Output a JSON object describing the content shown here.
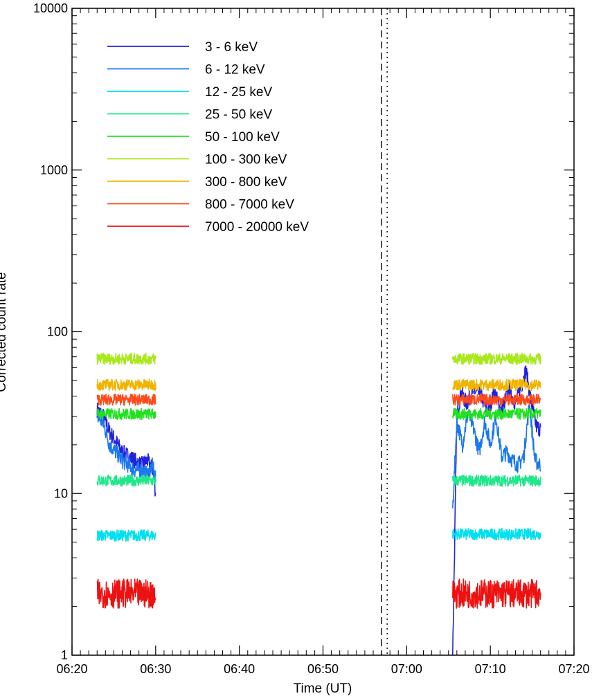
{
  "chart_data": {
    "type": "line",
    "title": "",
    "xlabel": "Time (UT)",
    "ylabel": "Corrected count rate",
    "y_scale": "log",
    "ylim": [
      1,
      10000
    ],
    "xlim": [
      "06:20",
      "07:20"
    ],
    "x_ticks": [
      "06:20",
      "06:30",
      "06:40",
      "06:50",
      "07:00",
      "07:10",
      "07:20"
    ],
    "y_ticks": [
      "1",
      "10",
      "100",
      "1000",
      "10000"
    ],
    "legend_position": "top-left",
    "grid": false,
    "vertical_lines": [
      {
        "time": "06:57",
        "style": "dashed"
      },
      {
        "time": "06:57:40",
        "style": "dotted"
      }
    ],
    "series": [
      {
        "name": "3 - 6 keV",
        "color": "#2222dd",
        "segments": [
          {
            "x": [
              "06:23:00",
              "06:23:45",
              "06:24:30",
              "06:25:15",
              "06:26:00",
              "06:26:45",
              "06:27:30",
              "06:28:15",
              "06:29:00",
              "06:29:40",
              "06:30:00"
            ],
            "y": [
              33,
              30,
              24,
              21,
              18,
              17,
              16,
              15,
              16,
              14,
              10
            ]
          },
          {
            "x": [
              "07:05:30",
              "07:06:00",
              "07:06:30",
              "07:07:10",
              "07:08:00",
              "07:08:50",
              "07:09:40",
              "07:10:30",
              "07:11:20",
              "07:12:10",
              "07:13:00",
              "07:13:40",
              "07:14:15",
              "07:14:50",
              "07:15:30",
              "07:16:00"
            ],
            "y": [
              1,
              30,
              42,
              36,
              43,
              41,
              32,
              42,
              32,
              44,
              36,
              45,
              58,
              38,
              26,
              25
            ]
          }
        ]
      },
      {
        "name": "6 - 12 keV",
        "color": "#1a78f0",
        "segments": [
          {
            "x": [
              "06:23:00",
              "06:23:45",
              "06:24:30",
              "06:25:15",
              "06:26:00",
              "06:26:45",
              "06:27:30",
              "06:28:15",
              "06:29:00",
              "06:29:40",
              "06:30:00"
            ],
            "y": [
              30,
              27,
              20,
              18,
              16,
              15,
              14,
              14,
              13,
              15,
              12
            ]
          },
          {
            "x": [
              "07:05:30",
              "07:06:00",
              "07:06:40",
              "07:07:20",
              "07:08:00",
              "07:08:40",
              "07:09:20",
              "07:10:00",
              "07:10:40",
              "07:11:20",
              "07:12:00",
              "07:12:40",
              "07:13:20",
              "07:14:00",
              "07:14:40",
              "07:15:20",
              "07:16:00"
            ],
            "y": [
              8,
              28,
              20,
              32,
              25,
              18,
              28,
              20,
              30,
              17,
              18,
              16,
              15,
              17,
              36,
              16,
              15
            ]
          }
        ]
      },
      {
        "name": "12 - 25 keV",
        "color": "#00e0f0",
        "segments": [
          {
            "x": [
              "06:23:00",
              "06:30:00"
            ],
            "y": [
              5.5,
              5.5
            ]
          },
          {
            "x": [
              "07:05:30",
              "07:16:00"
            ],
            "y": [
              5.6,
              5.6
            ]
          }
        ]
      },
      {
        "name": "25 - 50 keV",
        "color": "#1fe88a",
        "segments": [
          {
            "x": [
              "06:23:00",
              "06:30:00"
            ],
            "y": [
              12,
              12
            ]
          },
          {
            "x": [
              "07:05:30",
              "07:16:00"
            ],
            "y": [
              12,
              12
            ]
          }
        ]
      },
      {
        "name": "50 - 100 keV",
        "color": "#22e022",
        "segments": [
          {
            "x": [
              "06:23:00",
              "06:30:00"
            ],
            "y": [
              31,
              31
            ]
          },
          {
            "x": [
              "07:05:30",
              "07:16:00"
            ],
            "y": [
              31,
              31
            ]
          }
        ]
      },
      {
        "name": "100 - 300 keV",
        "color": "#a8e81c",
        "segments": [
          {
            "x": [
              "06:23:00",
              "06:30:00"
            ],
            "y": [
              68,
              68
            ]
          },
          {
            "x": [
              "07:05:30",
              "07:16:00"
            ],
            "y": [
              68,
              68
            ]
          }
        ]
      },
      {
        "name": "300 - 800 keV",
        "color": "#f0b400",
        "segments": [
          {
            "x": [
              "06:23:00",
              "06:30:00"
            ],
            "y": [
              47,
              47
            ]
          },
          {
            "x": [
              "07:05:30",
              "07:16:00"
            ],
            "y": [
              47,
              47
            ]
          }
        ]
      },
      {
        "name": "800 - 7000 keV",
        "color": "#ff4a1a",
        "segments": [
          {
            "x": [
              "06:23:00",
              "06:30:00"
            ],
            "y": [
              38,
              38
            ]
          },
          {
            "x": [
              "07:05:30",
              "07:16:00"
            ],
            "y": [
              38,
              38
            ]
          }
        ]
      },
      {
        "name": "7000 - 20000 keV",
        "color": "#ee1111",
        "segments": [
          {
            "x": [
              "06:23:00",
              "06:30:00"
            ],
            "y": [
              2.4,
              2.4
            ]
          },
          {
            "x": [
              "07:05:30",
              "07:16:00"
            ],
            "y": [
              2.4,
              2.4
            ]
          }
        ]
      }
    ]
  }
}
